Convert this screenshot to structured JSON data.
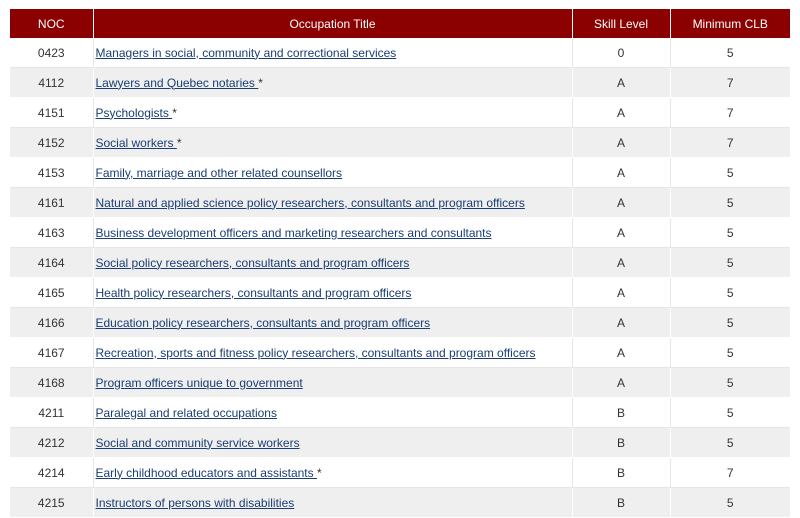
{
  "table": {
    "headers": {
      "noc": "NOC",
      "title": "Occupation Title",
      "skill": "Skill Level",
      "clb": "Minimum CLB"
    },
    "rows": [
      {
        "noc": "0423",
        "title": "Managers in social, community and correctional services",
        "star": "",
        "skill": "0",
        "clb": "5"
      },
      {
        "noc": "4112",
        "title": "Lawyers and Quebec notaries ",
        "star": "*",
        "skill": "A",
        "clb": "7"
      },
      {
        "noc": "4151",
        "title": "Psychologists ",
        "star": "*",
        "skill": "A",
        "clb": "7"
      },
      {
        "noc": "4152",
        "title": "Social workers ",
        "star": "*",
        "skill": "A",
        "clb": "7"
      },
      {
        "noc": "4153",
        "title": "Family, marriage and other related counsellors",
        "star": "",
        "skill": "A",
        "clb": "5"
      },
      {
        "noc": "4161",
        "title": "Natural and applied science policy researchers, consultants and program officers",
        "star": "",
        "skill": "A",
        "clb": "5"
      },
      {
        "noc": "4163",
        "title": "Business development officers and marketing researchers and consultants",
        "star": "",
        "skill": "A",
        "clb": "5"
      },
      {
        "noc": "4164",
        "title": "Social policy researchers, consultants and program officers",
        "star": "",
        "skill": "A",
        "clb": "5"
      },
      {
        "noc": "4165",
        "title": "Health policy researchers, consultants and program officers",
        "star": "",
        "skill": "A",
        "clb": "5"
      },
      {
        "noc": "4166",
        "title": "Education policy researchers, consultants and program officers",
        "star": "",
        "skill": "A",
        "clb": "5"
      },
      {
        "noc": "4167",
        "title": "Recreation, sports and fitness policy researchers, consultants and program officers",
        "star": "",
        "skill": "A",
        "clb": "5"
      },
      {
        "noc": "4168",
        "title": "Program officers unique to government",
        "star": "",
        "skill": "A",
        "clb": "5"
      },
      {
        "noc": "4211",
        "title": "Paralegal and related occupations",
        "star": "",
        "skill": "B",
        "clb": "5"
      },
      {
        "noc": "4212",
        "title": "Social and community service workers",
        "star": "",
        "skill": "B",
        "clb": "5"
      },
      {
        "noc": "4214",
        "title": "Early childhood educators and assistants ",
        "star": "*",
        "skill": "B",
        "clb": "7"
      },
      {
        "noc": "4215",
        "title": "Instructors of persons with disabilities",
        "star": "",
        "skill": "B",
        "clb": "5"
      }
    ]
  }
}
